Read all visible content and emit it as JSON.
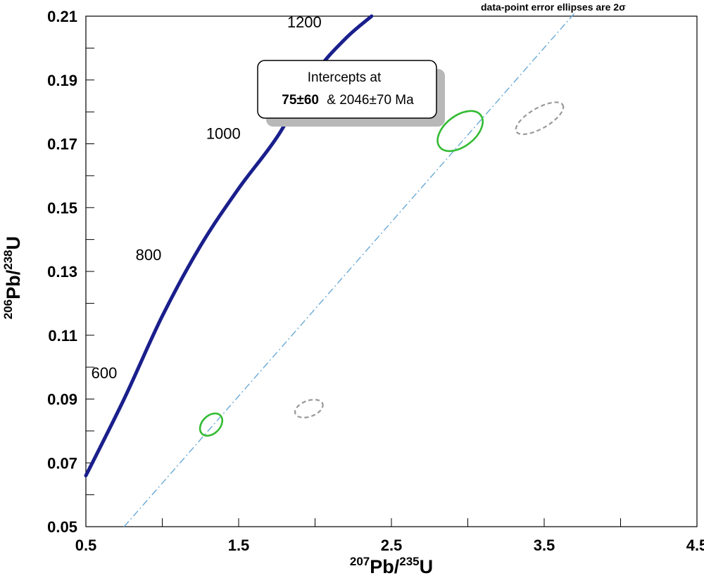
{
  "chart_data": {
    "type": "scatter",
    "subtype": "concordia-diagram",
    "note": "data-point error ellipses are 2σ",
    "xlabel": {
      "sup1": "207",
      "main1": "Pb/",
      "sup2": "235",
      "main2": "U"
    },
    "ylabel": {
      "sup1": "206",
      "main1": "Pb/",
      "sup2": "238",
      "main2": "U"
    },
    "xlim": [
      0.5,
      4.5
    ],
    "ylim": [
      0.05,
      0.21
    ],
    "x_ticks": [
      "0.5",
      "1.5",
      "2.5",
      "3.5",
      "4.5"
    ],
    "y_ticks": [
      "0.05",
      "0.07",
      "0.09",
      "0.11",
      "0.13",
      "0.15",
      "0.17",
      "0.19",
      "0.21"
    ],
    "concordia": {
      "color": "#1a1f8c",
      "points": [
        [
          0.5,
          0.066
        ],
        [
          0.75,
          0.09
        ],
        [
          1.0,
          0.116
        ],
        [
          1.25,
          0.138
        ],
        [
          1.5,
          0.156
        ],
        [
          1.75,
          0.172
        ],
        [
          2.0,
          0.192
        ],
        [
          2.2,
          0.203
        ],
        [
          2.37,
          0.21
        ]
      ],
      "age_labels": [
        {
          "text": "600",
          "x": 0.62,
          "y": 0.0965
        },
        {
          "text": "800",
          "x": 0.91,
          "y": 0.1335
        },
        {
          "text": "1000",
          "x": 1.4,
          "y": 0.1715
        },
        {
          "text": "1200",
          "x": 1.93,
          "y": 0.2065
        }
      ]
    },
    "discordia": {
      "color": "#6aaad6",
      "x": [
        0.75,
        3.7
      ],
      "y": [
        0.05,
        0.211
      ]
    },
    "ellipses": [
      {
        "cx": 1.32,
        "cy": 0.082,
        "rx": 0.085,
        "ry": 0.0028,
        "angle": -45,
        "color": "#33bb33",
        "style": "solid"
      },
      {
        "cx": 2.95,
        "cy": 0.174,
        "rx": 0.17,
        "ry": 0.0048,
        "angle": -38,
        "color": "#33bb33",
        "style": "solid"
      },
      {
        "cx": 1.96,
        "cy": 0.087,
        "rx": 0.095,
        "ry": 0.0025,
        "angle": -20,
        "color": "#999999",
        "style": "dashed"
      },
      {
        "cx": 3.47,
        "cy": 0.178,
        "rx": 0.175,
        "ry": 0.0032,
        "angle": -30,
        "color": "#999999",
        "style": "dashed"
      }
    ],
    "intercept_box": {
      "line1": "Intercepts at",
      "bold": "75±60",
      "rest": "& 2046±70   Ma"
    },
    "grid": false
  }
}
